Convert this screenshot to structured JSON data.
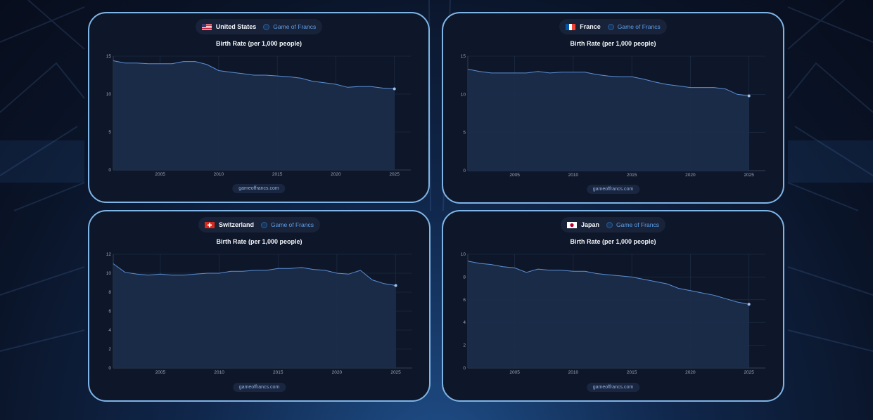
{
  "footer_text": "gameoffrancs.com",
  "brand_label": "Game of Francs",
  "colors": {
    "line": "#5b8fd6",
    "fill": "#1b2c4a",
    "grid": "#22304a",
    "card_border": "#7fb4e6"
  },
  "chart_data": [
    {
      "type": "area",
      "country": "United States",
      "flag": "us-flag-icon",
      "title": "Birth Rate (per 1,000 people)",
      "x": [
        2001,
        2002,
        2003,
        2004,
        2005,
        2006,
        2007,
        2008,
        2009,
        2010,
        2011,
        2012,
        2013,
        2014,
        2015,
        2016,
        2017,
        2018,
        2019,
        2020,
        2021,
        2022,
        2023,
        2024,
        2025
      ],
      "values": [
        14.4,
        14.1,
        14.1,
        14.0,
        14.0,
        14.0,
        14.3,
        14.3,
        13.9,
        13.1,
        12.9,
        12.7,
        12.5,
        12.5,
        12.4,
        12.3,
        12.1,
        11.7,
        11.5,
        11.3,
        10.9,
        11.0,
        11.0,
        10.8,
        10.7
      ],
      "xticks": [
        2005,
        2010,
        2015,
        2020,
        2025
      ],
      "yticks": [
        0,
        5,
        10,
        15
      ],
      "ylim": [
        0,
        15
      ],
      "xlim": [
        2001,
        2026.4
      ]
    },
    {
      "type": "area",
      "country": "France",
      "flag": "france-flag-icon",
      "title": "Birth Rate (per 1,000 people)",
      "x": [
        2001,
        2002,
        2003,
        2004,
        2005,
        2006,
        2007,
        2008,
        2009,
        2010,
        2011,
        2012,
        2013,
        2014,
        2015,
        2016,
        2017,
        2018,
        2019,
        2020,
        2021,
        2022,
        2023,
        2024,
        2025
      ],
      "values": [
        13.3,
        13.0,
        12.8,
        12.8,
        12.8,
        12.8,
        13.0,
        12.8,
        12.9,
        12.9,
        12.9,
        12.6,
        12.4,
        12.3,
        12.3,
        12.0,
        11.6,
        11.3,
        11.1,
        10.9,
        10.9,
        10.9,
        10.7,
        10.0,
        9.8
      ],
      "xticks": [
        2005,
        2010,
        2015,
        2020,
        2025
      ],
      "yticks": [
        0,
        5,
        10,
        15
      ],
      "ylim": [
        0,
        15
      ],
      "xlim": [
        2001,
        2026.4
      ]
    },
    {
      "type": "area",
      "country": "Switzerland",
      "flag": "switzerland-flag-icon",
      "title": "Birth Rate (per 1,000 people)",
      "x": [
        2001,
        2002,
        2003,
        2004,
        2005,
        2006,
        2007,
        2008,
        2009,
        2010,
        2011,
        2012,
        2013,
        2014,
        2015,
        2016,
        2017,
        2018,
        2019,
        2020,
        2021,
        2022,
        2023,
        2024,
        2025
      ],
      "values": [
        11.0,
        10.1,
        9.9,
        9.8,
        9.9,
        9.8,
        9.8,
        9.9,
        10.0,
        10.0,
        10.2,
        10.2,
        10.3,
        10.3,
        10.5,
        10.5,
        10.6,
        10.4,
        10.3,
        10.0,
        9.9,
        10.3,
        9.3,
        8.9,
        8.7
      ],
      "xticks": [
        2005,
        2010,
        2015,
        2020,
        2025
      ],
      "yticks": [
        0,
        2,
        4,
        6,
        8,
        10,
        12
      ],
      "ylim": [
        0,
        12
      ],
      "xlim": [
        2001,
        2026.4
      ]
    },
    {
      "type": "area",
      "country": "Japan",
      "flag": "japan-flag-icon",
      "title": "Birth Rate (per 1,000 people)",
      "x": [
        2001,
        2002,
        2003,
        2004,
        2005,
        2006,
        2007,
        2008,
        2009,
        2010,
        2011,
        2012,
        2013,
        2014,
        2015,
        2016,
        2017,
        2018,
        2019,
        2020,
        2021,
        2022,
        2023,
        2024,
        2025
      ],
      "values": [
        9.4,
        9.2,
        9.1,
        8.9,
        8.8,
        8.4,
        8.7,
        8.6,
        8.6,
        8.5,
        8.5,
        8.3,
        8.2,
        8.1,
        8.0,
        7.8,
        7.6,
        7.4,
        7.0,
        6.8,
        6.6,
        6.4,
        6.1,
        5.8,
        5.6
      ],
      "xticks": [
        2005,
        2010,
        2015,
        2020,
        2025
      ],
      "yticks": [
        0,
        2,
        4,
        6,
        8,
        10
      ],
      "ylim": [
        0,
        10
      ],
      "xlim": [
        2001,
        2026.4
      ]
    }
  ]
}
